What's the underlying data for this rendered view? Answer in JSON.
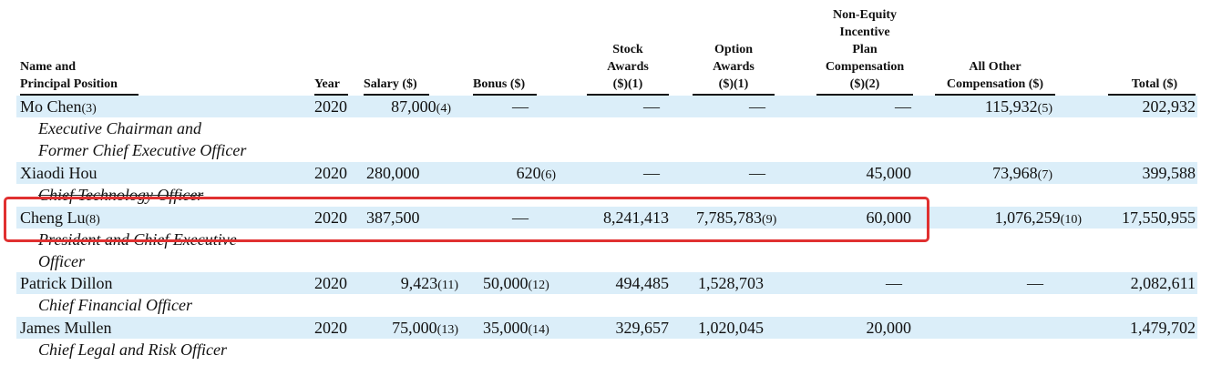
{
  "headers": {
    "name": [
      "Name and",
      "Principal Position"
    ],
    "year": "Year",
    "salary": "Salary ($)",
    "bonus": "Bonus ($)",
    "stock": [
      "Stock",
      "Awards",
      "($)(1)"
    ],
    "option": [
      "Option",
      "Awards",
      "($)(1)"
    ],
    "nonequity": [
      "Non-Equity",
      "Incentive",
      "Plan",
      "Compensation",
      "($)(2)"
    ],
    "other": [
      "All Other",
      "Compensation ($)"
    ],
    "total": "Total ($)"
  },
  "rows": [
    {
      "name": "Mo Chen",
      "name_note": "(3)",
      "titles": [
        "Executive Chairman and",
        "Former Chief Executive Officer"
      ],
      "year": "2020",
      "salary": "87,000",
      "salary_note": "(4)",
      "bonus": "—",
      "bonus_note": "",
      "stock": "—",
      "option": "—",
      "option_note": "",
      "nonequity": "—",
      "other": "115,932",
      "other_note": "(5)",
      "total": "202,932"
    },
    {
      "name": "Xiaodi Hou",
      "name_note": "",
      "titles": [
        "Chief Technology Officer"
      ],
      "year": "2020",
      "salary": "280,000",
      "salary_note": "",
      "bonus": "620",
      "bonus_note": "(6)",
      "stock": "—",
      "option": "—",
      "option_note": "",
      "nonequity": "45,000",
      "other": "73,968",
      "other_note": "(7)",
      "total": "399,588"
    },
    {
      "name": "Cheng Lu",
      "name_note": "(8)",
      "titles": [
        "President and Chief Executive",
        "Officer"
      ],
      "year": "2020",
      "salary": "387,500",
      "salary_note": "",
      "bonus": "—",
      "bonus_note": "",
      "stock": "8,241,413",
      "option": "7,785,783",
      "option_note": "(9)",
      "nonequity": "60,000",
      "other": "1,076,259",
      "other_note": "(10)",
      "total": "17,550,955"
    },
    {
      "name": "Patrick Dillon",
      "name_note": "",
      "titles": [
        "Chief Financial Officer"
      ],
      "year": "2020",
      "salary": "9,423",
      "salary_note": "(11)",
      "bonus": "50,000",
      "bonus_note": "(12)",
      "stock": "494,485",
      "option": "1,528,703",
      "option_note": "",
      "nonequity": "—",
      "other": "—",
      "other_note": "",
      "total": "2,082,611"
    },
    {
      "name": "James Mullen",
      "name_note": "",
      "titles": [
        "Chief Legal and Risk Officer"
      ],
      "year": "2020",
      "salary": "75,000",
      "salary_note": "(13)",
      "bonus": "35,000",
      "bonus_note": "(14)",
      "stock": "329,657",
      "option": "1,020,045",
      "option_note": "",
      "nonequity": "20,000",
      "other": "",
      "other_note": "",
      "total": "1,479,702"
    }
  ]
}
